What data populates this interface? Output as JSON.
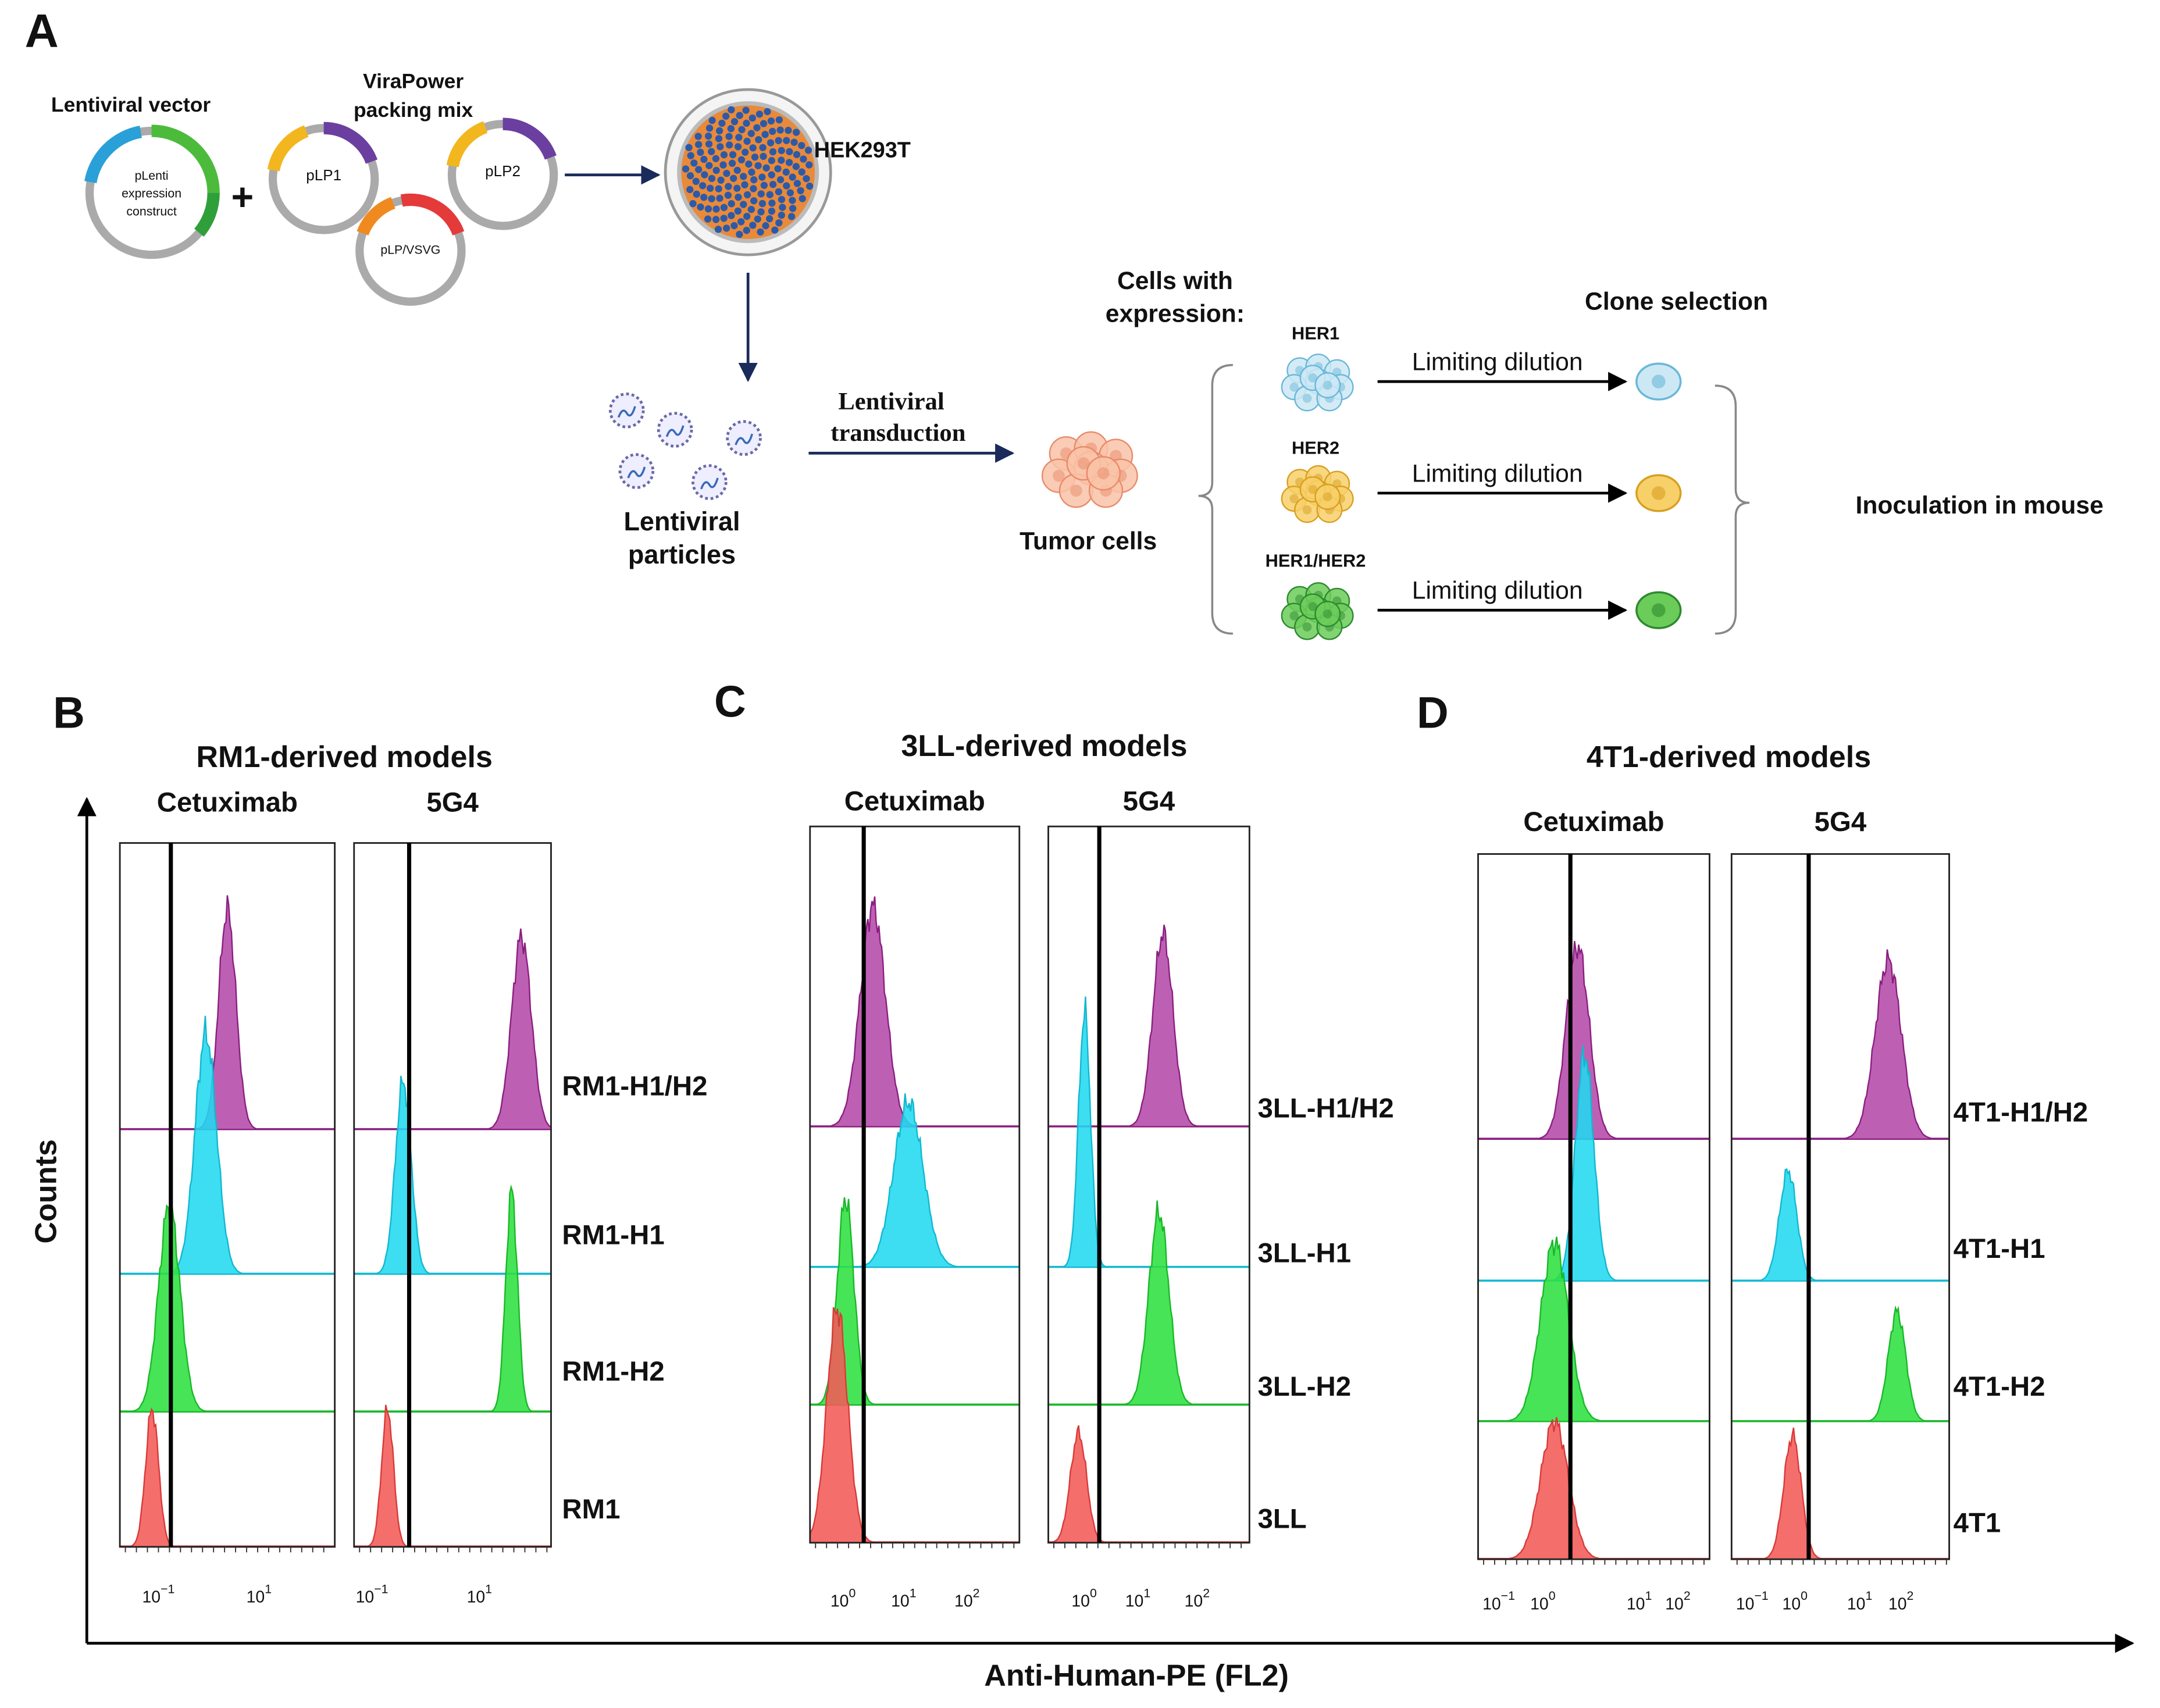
{
  "panel_a": {
    "letter": "A",
    "lentiviral_vector": "Lentiviral vector",
    "construct": [
      "pLenti",
      "expression",
      "construct"
    ],
    "plus": "+",
    "packing_mix": [
      "ViraPower",
      "packing mix"
    ],
    "plasmids": [
      "pLP1",
      "pLP2",
      "pLP/VSVG"
    ],
    "host": "HEK293T",
    "particles": [
      "Lentiviral",
      "particles"
    ],
    "transduction": [
      "Lentiviral",
      "transduction"
    ],
    "tumor_cells": "Tumor cells",
    "cells_with": [
      "Cells with",
      "expression:"
    ],
    "clone_selection": "Clone selection",
    "lines": [
      {
        "label": "HER1",
        "step": "Limiting dilution"
      },
      {
        "label": "HER2",
        "step": "Limiting dilution"
      },
      {
        "label": "HER1/HER2",
        "step": "Limiting dilution"
      }
    ],
    "inoculation": "Inoculation in mouse"
  },
  "panels": [
    {
      "letter": "B",
      "title": "RM1-derived models",
      "antibodies": [
        "Cetuximab",
        "5G4"
      ],
      "samples": [
        "RM1-H1/H2",
        "RM1-H1",
        "RM1-H2",
        "RM1"
      ],
      "ticks": [
        [
          {
            "base": "10",
            "exp": "−1"
          },
          {
            "base": "10",
            "exp": "1"
          }
        ],
        [
          {
            "base": "10",
            "exp": "−1"
          },
          {
            "base": "10",
            "exp": "1"
          }
        ]
      ]
    },
    {
      "letter": "C",
      "title": "3LL-derived models",
      "antibodies": [
        "Cetuximab",
        "5G4"
      ],
      "samples": [
        "3LL-H1/H2",
        "3LL-H1",
        "3LL-H2",
        "3LL"
      ],
      "ticks": [
        [
          {
            "base": "10",
            "exp": "0"
          },
          {
            "base": "10",
            "exp": "1"
          },
          {
            "base": "10",
            "exp": "2"
          }
        ],
        [
          {
            "base": "10",
            "exp": "0"
          },
          {
            "base": "10",
            "exp": "1"
          },
          {
            "base": "10",
            "exp": "2"
          }
        ]
      ]
    },
    {
      "letter": "D",
      "title": "4T1-derived models",
      "antibodies": [
        "Cetuximab",
        "5G4"
      ],
      "samples": [
        "4T1-H1/H2",
        "4T1-H1",
        "4T1-H2",
        "4T1"
      ],
      "ticks": [
        [
          {
            "base": "10",
            "exp": "−1"
          },
          {
            "base": "10",
            "exp": "0"
          },
          {
            "base": "10",
            "exp": "1"
          },
          {
            "base": "10",
            "exp": "2"
          }
        ],
        [
          {
            "base": "10",
            "exp": "−1"
          },
          {
            "base": "10",
            "exp": "0"
          },
          {
            "base": "10",
            "exp": "1"
          },
          {
            "base": "10",
            "exp": "2"
          }
        ]
      ]
    }
  ],
  "y_label": "Counts",
  "x_label": "Anti-Human-PE (FL2)"
}
